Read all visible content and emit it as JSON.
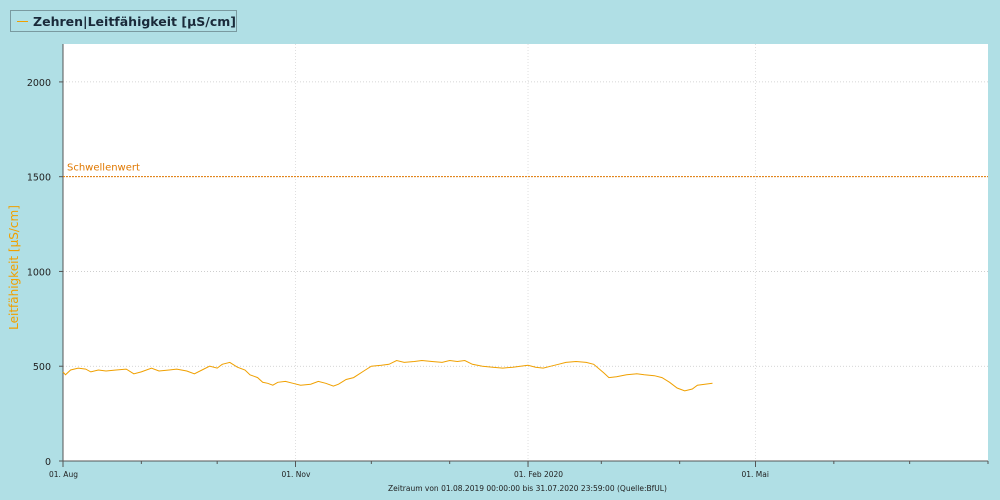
{
  "legend": {
    "label": "Zehren|Leitfähigkeit [µS/cm]",
    "color": "#f0a000"
  },
  "footer": {
    "text": "Zeitraum  von 01.08.2019  00:00:00  bis  31.07.2020 23:59:00        (Quelle:BfUL)"
  },
  "chart_data": {
    "type": "line",
    "ylabel": "Leitfähigkeit [µS/cm]",
    "ylim": [
      0,
      2200
    ],
    "yticks": [
      0,
      500,
      1000,
      1500,
      2000
    ],
    "xlim": [
      "2019-08-01",
      "2020-07-31"
    ],
    "xticks": [
      {
        "date": "2019-08-01",
        "label": "01. Aug"
      },
      {
        "date": "2019-11-01",
        "label": "01. Nov"
      },
      {
        "date": "2020-02-01",
        "label": "01. Feb 2020"
      },
      {
        "date": "2020-05-01",
        "label": "01. Mai"
      }
    ],
    "threshold": {
      "label": "Schwellenwert",
      "value": 1500,
      "color": "#e07800"
    },
    "grid": true,
    "series": [
      {
        "name": "Zehren|Leitfähigkeit [µS/cm]",
        "color": "#f0a000",
        "points": [
          [
            "2019-08-01",
            470
          ],
          [
            "2019-08-02",
            455
          ],
          [
            "2019-08-04",
            480
          ],
          [
            "2019-08-07",
            490
          ],
          [
            "2019-08-10",
            485
          ],
          [
            "2019-08-12",
            470
          ],
          [
            "2019-08-15",
            480
          ],
          [
            "2019-08-18",
            475
          ],
          [
            "2019-08-22",
            480
          ],
          [
            "2019-08-26",
            485
          ],
          [
            "2019-08-29",
            460
          ],
          [
            "2019-09-01",
            470
          ],
          [
            "2019-09-05",
            490
          ],
          [
            "2019-09-08",
            475
          ],
          [
            "2019-09-12",
            480
          ],
          [
            "2019-09-15",
            485
          ],
          [
            "2019-09-19",
            475
          ],
          [
            "2019-09-22",
            460
          ],
          [
            "2019-09-25",
            480
          ],
          [
            "2019-09-28",
            500
          ],
          [
            "2019-10-01",
            490
          ],
          [
            "2019-10-03",
            510
          ],
          [
            "2019-10-06",
            520
          ],
          [
            "2019-10-09",
            495
          ],
          [
            "2019-10-12",
            480
          ],
          [
            "2019-10-14",
            455
          ],
          [
            "2019-10-17",
            440
          ],
          [
            "2019-10-19",
            415
          ],
          [
            "2019-10-21",
            410
          ],
          [
            "2019-10-23",
            400
          ],
          [
            "2019-10-25",
            415
          ],
          [
            "2019-10-28",
            420
          ],
          [
            "2019-10-31",
            410
          ],
          [
            "2019-11-03",
            400
          ],
          [
            "2019-11-07",
            405
          ],
          [
            "2019-11-10",
            420
          ],
          [
            "2019-11-13",
            410
          ],
          [
            "2019-11-16",
            395
          ],
          [
            "2019-11-18",
            405
          ],
          [
            "2019-11-21",
            430
          ],
          [
            "2019-11-24",
            440
          ],
          [
            "2019-11-28",
            475
          ],
          [
            "2019-12-01",
            500
          ],
          [
            "2019-12-05",
            505
          ],
          [
            "2019-12-08",
            510
          ],
          [
            "2019-12-11",
            530
          ],
          [
            "2019-12-14",
            520
          ],
          [
            "2019-12-18",
            525
          ],
          [
            "2019-12-21",
            530
          ],
          [
            "2019-12-25",
            525
          ],
          [
            "2019-12-29",
            520
          ],
          [
            "2020-01-01",
            530
          ],
          [
            "2020-01-04",
            525
          ],
          [
            "2020-01-07",
            530
          ],
          [
            "2020-01-10",
            510
          ],
          [
            "2020-01-14",
            500
          ],
          [
            "2020-01-18",
            495
          ],
          [
            "2020-01-22",
            490
          ],
          [
            "2020-01-26",
            495
          ],
          [
            "2020-01-29",
            500
          ],
          [
            "2020-02-01",
            505
          ],
          [
            "2020-02-04",
            495
          ],
          [
            "2020-02-07",
            490
          ],
          [
            "2020-02-10",
            500
          ],
          [
            "2020-02-13",
            510
          ],
          [
            "2020-02-16",
            520
          ],
          [
            "2020-02-20",
            525
          ],
          [
            "2020-02-24",
            520
          ],
          [
            "2020-02-27",
            510
          ],
          [
            "2020-03-02",
            465
          ],
          [
            "2020-03-04",
            440
          ],
          [
            "2020-03-07",
            445
          ],
          [
            "2020-03-11",
            455
          ],
          [
            "2020-03-15",
            460
          ],
          [
            "2020-03-18",
            455
          ],
          [
            "2020-03-22",
            450
          ],
          [
            "2020-03-25",
            440
          ],
          [
            "2020-03-28",
            415
          ],
          [
            "2020-03-31",
            385
          ],
          [
            "2020-04-03",
            370
          ],
          [
            "2020-04-06",
            380
          ],
          [
            "2020-04-08",
            400
          ],
          [
            "2020-04-11",
            405
          ],
          [
            "2020-04-14",
            410
          ]
        ]
      }
    ]
  }
}
